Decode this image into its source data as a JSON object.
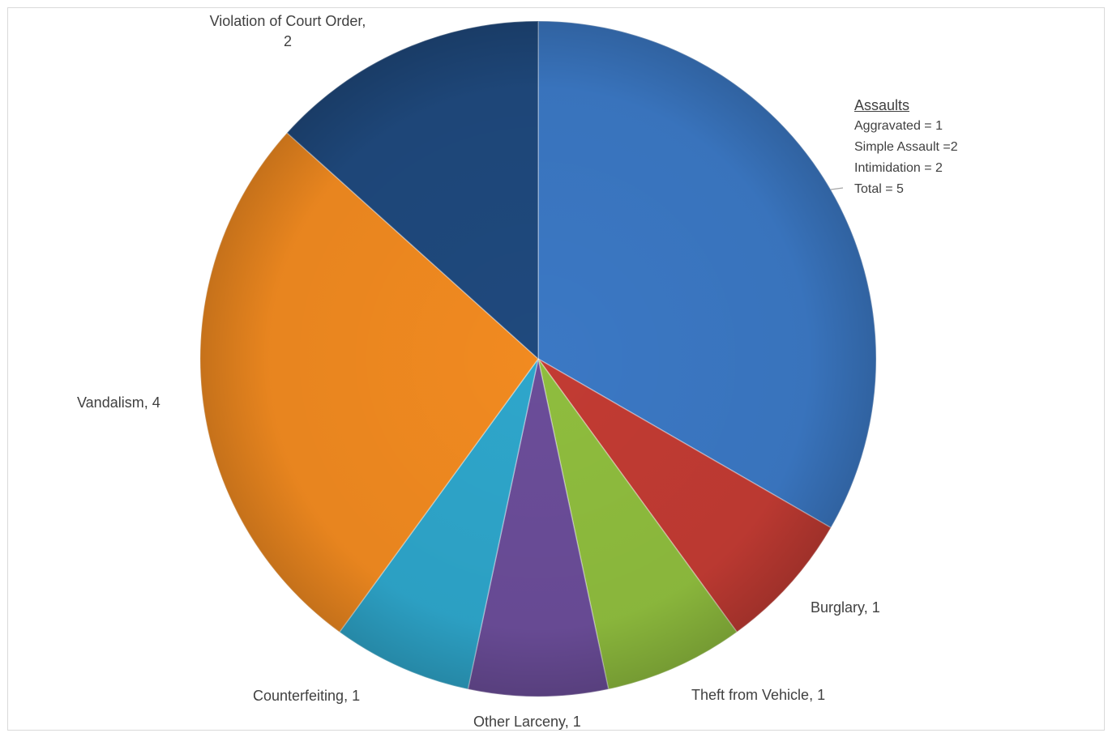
{
  "chart_data": {
    "type": "pie",
    "slices": [
      {
        "label": "Assaults",
        "value": 5,
        "color": "#3b78c4"
      },
      {
        "label": "Burglary",
        "value": 1,
        "color": "#c23b33"
      },
      {
        "label": "Theft from Vehicle",
        "value": 1,
        "color": "#8fbd3e"
      },
      {
        "label": "Other Larceny",
        "value": 1,
        "color": "#6b4d99"
      },
      {
        "label": "Counterfeiting",
        "value": 1,
        "color": "#2ea6cb"
      },
      {
        "label": "Vandalism",
        "value": 4,
        "color": "#f18a20"
      },
      {
        "label": "Violation of Court Order",
        "value": 2,
        "color": "#1f497d"
      }
    ],
    "labels": {
      "violation_line1": "Violation of Court Order,",
      "violation_line2": "2",
      "vandalism": "Vandalism, 4",
      "burglary": "Burglary, 1",
      "theft": "Theft from Vehicle, 1",
      "larceny": "Other Larceny, 1",
      "counterfeiting": "Counterfeiting, 1"
    },
    "assaults_label": {
      "heading": "Assaults",
      "lines": [
        "Aggravated = 1",
        "Simple Assault =2",
        "Intimidation = 2",
        "Total = 5"
      ]
    }
  }
}
